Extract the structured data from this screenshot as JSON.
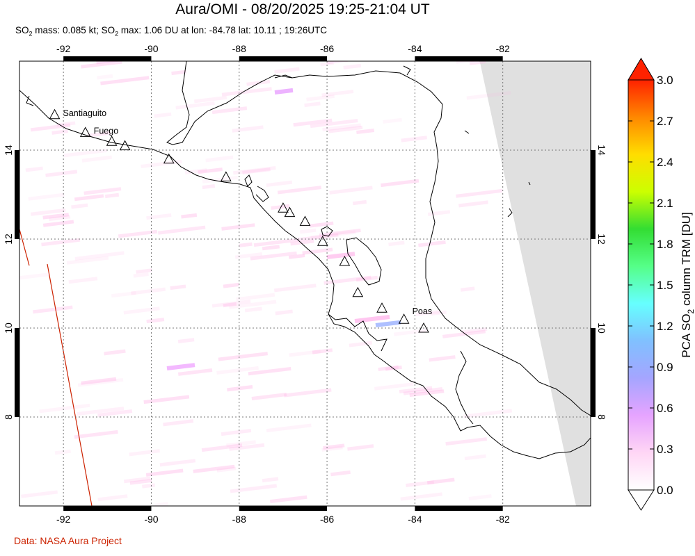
{
  "title": "Aura/OMI - 08/20/2025 19:25-21:04 UT",
  "subtitle": {
    "mass_label": "SO",
    "mass_sub": "2",
    "mass_text": " mass: 0.085 kt; ",
    "max_label": "SO",
    "max_sub": "2",
    "max_text": " max: 1.06 DU at lon: -84.78 lat: 10.11 ; 19:26UTC"
  },
  "credit": "Data: NASA Aura Project",
  "map": {
    "lon_range": [
      -93,
      -80
    ],
    "lat_range": [
      6,
      16
    ],
    "lon_ticks": [
      -92,
      -90,
      -88,
      -86,
      -84,
      -82
    ],
    "lat_ticks": [
      8,
      10,
      12,
      14
    ],
    "lon_tick_labels": [
      "-92",
      "-90",
      "-88",
      "-86",
      "-84",
      "-82"
    ],
    "lat_tick_labels": [
      "8",
      "10",
      "12",
      "14"
    ],
    "no_data_color": "#e0e0e0",
    "coast_color": "#000000",
    "grid": "dotted"
  },
  "volcanoes": [
    {
      "name": "Santiaguito",
      "lon": -92.2,
      "lat": 14.8,
      "label": "Santiaguito",
      "shape": "triangle"
    },
    {
      "name": "Fuego",
      "lon": -91.5,
      "lat": 14.4,
      "label": "Fuego",
      "shape": "triangle"
    },
    {
      "name": "v3",
      "lon": -90.9,
      "lat": 14.2,
      "label": "",
      "shape": "triangle"
    },
    {
      "name": "v4",
      "lon": -90.6,
      "lat": 14.1,
      "label": "",
      "shape": "triangle"
    },
    {
      "name": "v5",
      "lon": -89.6,
      "lat": 13.8,
      "label": "",
      "shape": "triangle"
    },
    {
      "name": "v6",
      "lon": -88.3,
      "lat": 13.4,
      "label": "",
      "shape": "triangle"
    },
    {
      "name": "v7",
      "lon": -87.0,
      "lat": 12.7,
      "label": "",
      "shape": "triangle"
    },
    {
      "name": "v8",
      "lon": -86.85,
      "lat": 12.6,
      "label": "",
      "shape": "triangle"
    },
    {
      "name": "v9",
      "lon": -86.5,
      "lat": 12.4,
      "label": "",
      "shape": "triangle"
    },
    {
      "name": "v10",
      "lon": -86.1,
      "lat": 11.95,
      "label": "",
      "shape": "triangle"
    },
    {
      "name": "v11",
      "lon": -85.6,
      "lat": 11.5,
      "label": "",
      "shape": "triangle"
    },
    {
      "name": "v12",
      "lon": -85.3,
      "lat": 10.8,
      "label": "",
      "shape": "triangle"
    },
    {
      "name": "v13",
      "lon": -84.75,
      "lat": 10.45,
      "label": "",
      "shape": "triangle"
    },
    {
      "name": "Poas",
      "lon": -84.25,
      "lat": 10.2,
      "label": "Poas",
      "shape": "triangle"
    },
    {
      "name": "v15",
      "lon": -83.8,
      "lat": 10.0,
      "label": "",
      "shape": "triangle"
    }
  ],
  "colorbar": {
    "title": "PCA SO",
    "title_sub": "2",
    "title_rest": " column TRM [DU]",
    "min": 0.0,
    "max": 3.0,
    "tick_labels": [
      "0.0",
      "0.3",
      "0.6",
      "0.9",
      "1.2",
      "1.5",
      "1.8",
      "2.1",
      "2.4",
      "2.7",
      "3.0"
    ],
    "colors": [
      "#ffffff",
      "#ffd6f5",
      "#e6a4ff",
      "#a5a5ff",
      "#80c0ff",
      "#66ffff",
      "#55ff88",
      "#33dd33",
      "#ccff00",
      "#ffdd00",
      "#ff8800",
      "#ff2200"
    ]
  }
}
